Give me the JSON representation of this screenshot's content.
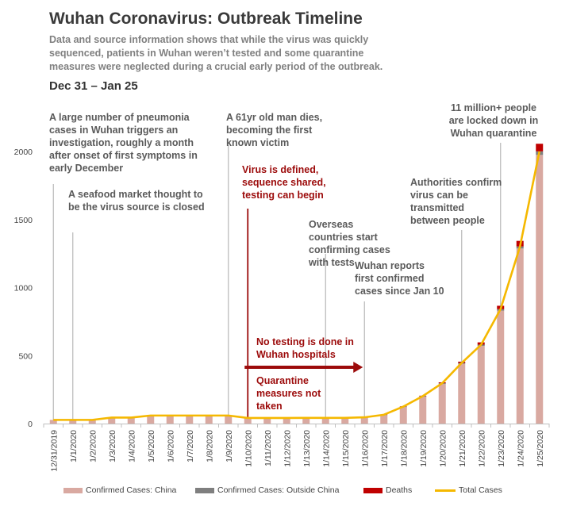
{
  "header": {
    "title": "Wuhan Coronavirus: Outbreak Timeline",
    "subtitle": "Data and source information shows that while the virus was quickly sequenced, patients in Wuhan weren’t tested and some quarantine measures were neglected during a crucial early period of the outbreak.",
    "date_range": "Dec 31 – Jan 25"
  },
  "colors": {
    "china": "#d9a9a1",
    "outside": "#7f7f7f",
    "deaths": "#c00000",
    "total": "#f5b800",
    "annotation_red": "#9c0b0b",
    "annotation_grey": "#5a5a5a"
  },
  "annotations": {
    "pneumonia": "A large number of pneumonia cases in Wuhan triggers an investigation, roughly a month after onset of first symptoms in early December",
    "seafood": "A seafood market thought to be the virus source is closed",
    "man_dies": "A 61yr old man dies, becoming the first known victim",
    "virus_defined": "Virus is defined, sequence shared, testing can begin",
    "overseas": "Overseas countries start confirming cases with tests",
    "wuhan_reports": "Wuhan reports first confirmed cases since Jan 10",
    "authorities": "Authorities confirm virus can be transmitted between people",
    "lockdown": "11 million+ people are locked down in Wuhan quarantine",
    "no_testing": "No testing is done in Wuhan hospitals",
    "quarantine": "Quarantine measures not taken"
  },
  "chart_data": {
    "type": "bar",
    "categories": [
      "12/31/2019",
      "1/1/2020",
      "1/2/2020",
      "1/3/2020",
      "1/4/2020",
      "1/5/2020",
      "1/6/2020",
      "1/7/2020",
      "1/8/2020",
      "1/9/2020",
      "1/10/2020",
      "1/11/2020",
      "1/12/2020",
      "1/13/2020",
      "1/14/2020",
      "1/15/2020",
      "1/16/2020",
      "1/17/2020",
      "1/18/2020",
      "1/19/2020",
      "1/20/2020",
      "1/21/2020",
      "1/22/2020",
      "1/23/2020",
      "1/24/2020",
      "1/25/2020"
    ],
    "series": [
      {
        "name": "Confirmed Cases: China",
        "values": [
          27,
          27,
          27,
          44,
          44,
          59,
          59,
          59,
          59,
          59,
          41,
          41,
          41,
          41,
          41,
          41,
          45,
          62,
          121,
          198,
          291,
          440,
          571,
          830,
          1287,
          1975
        ]
      },
      {
        "name": "Confirmed Cases: Outside China",
        "values": [
          0,
          0,
          0,
          0,
          0,
          0,
          0,
          0,
          0,
          0,
          0,
          0,
          0,
          1,
          1,
          1,
          1,
          3,
          4,
          4,
          6,
          6,
          9,
          11,
          15,
          26
        ]
      },
      {
        "name": "Deaths",
        "values": [
          0,
          0,
          0,
          0,
          0,
          0,
          0,
          0,
          0,
          0,
          1,
          1,
          1,
          1,
          1,
          2,
          2,
          2,
          2,
          3,
          6,
          9,
          17,
          25,
          41,
          56
        ]
      },
      {
        "name": "Total Cases",
        "values": [
          27,
          27,
          27,
          44,
          44,
          59,
          59,
          59,
          59,
          59,
          41,
          41,
          41,
          42,
          42,
          42,
          46,
          65,
          125,
          202,
          297,
          446,
          580,
          841,
          1302,
          2001
        ]
      }
    ],
    "ylim": [
      0,
      2000
    ],
    "yticks": [
      0,
      500,
      1000,
      1500,
      2000
    ],
    "title": "",
    "xlabel": "",
    "ylabel": ""
  }
}
